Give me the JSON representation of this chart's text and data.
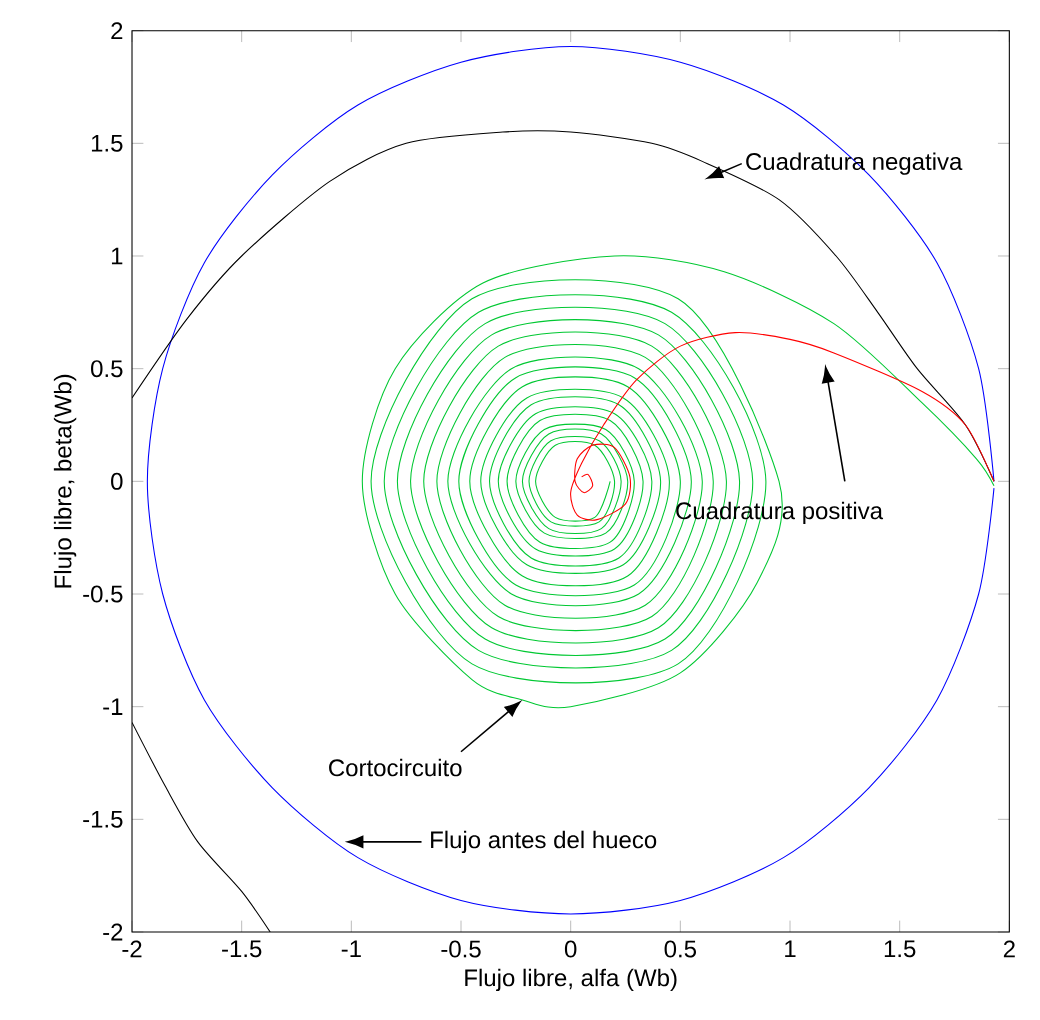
{
  "chart_data": {
    "type": "line",
    "xlabel": "Flujo libre, alfa (Wb)",
    "ylabel": "Flujo libre, beta(Wb)",
    "xlim": [
      -2,
      2
    ],
    "ylim": [
      -2,
      2
    ],
    "xticks": [
      -2,
      -1.5,
      -1,
      -0.5,
      0,
      0.5,
      1,
      1.5,
      2
    ],
    "yticks": [
      -2,
      -1.5,
      -1,
      -0.5,
      0,
      0.5,
      1,
      1.5,
      2
    ],
    "series": [
      {
        "color": "#0000ff",
        "x": [
          1.93,
          1.86,
          1.67,
          1.36,
          0.97,
          0.5,
          0,
          -0.5,
          -0.97,
          -1.36,
          -1.67,
          -1.86,
          -1.93,
          -1.86,
          -1.67,
          -1.36,
          -0.97,
          -0.5,
          0,
          0.5,
          0.97,
          1.36,
          1.67,
          1.86,
          1.93
        ],
        "values": [
          0,
          0.5,
          0.97,
          1.36,
          1.67,
          1.86,
          1.93,
          1.86,
          1.67,
          1.36,
          0.97,
          0.5,
          0,
          -0.5,
          -0.97,
          -1.36,
          -1.67,
          -1.86,
          -1.92,
          -1.86,
          -1.67,
          -1.36,
          -0.97,
          -0.5,
          -0.03
        ]
      },
      {
        "color": "#000000",
        "x": [
          1.93,
          1.8,
          1.58,
          1.4,
          1.21,
          0.95,
          0.6,
          0.37,
          0,
          -0.31,
          -0.75,
          -1.1,
          -1.5,
          -1.75,
          -2.0,
          null,
          -2.0,
          -1.85,
          -1.7,
          -1.5,
          -1.37
        ],
        "values": [
          0,
          0.25,
          0.5,
          0.75,
          1.0,
          1.25,
          1.42,
          1.5,
          1.55,
          1.55,
          1.5,
          1.33,
          1.0,
          0.72,
          0.37,
          null,
          -1.07,
          -1.35,
          -1.6,
          -1.82,
          -2.0
        ]
      },
      {
        "color": "#00c832",
        "x": [
          1.93,
          1.85,
          1.6,
          1.2,
          0.7,
          0.2,
          -0.4,
          -0.8,
          -0.95,
          -0.8,
          -0.45,
          -0.22,
          0,
          0.5,
          0.85,
          0.95,
          0.49,
          -0.45,
          -0.91,
          -0.45,
          0.49,
          0.89,
          0.46,
          -0.42,
          -0.85,
          -0.42,
          0.46,
          0.83,
          0.43,
          -0.39,
          -0.79,
          -0.39,
          0.43,
          0.77,
          0.4,
          -0.36,
          -0.73,
          -0.36,
          0.4,
          0.71,
          0.37,
          -0.33,
          -0.67,
          -0.33,
          0.37,
          0.65,
          0.34,
          -0.3,
          -0.61,
          -0.3,
          0.34,
          0.6,
          0.31,
          -0.27,
          -0.56,
          -0.27,
          0.31,
          0.55,
          0.29,
          -0.25,
          -0.51,
          -0.25,
          0.29,
          0.5,
          0.26,
          -0.22,
          -0.46,
          -0.22,
          0.26,
          0.45,
          0.24,
          -0.2,
          -0.41,
          -0.2,
          0.24,
          0.41,
          0.22,
          -0.18,
          -0.37,
          -0.18,
          0.22,
          0.37,
          0.2,
          -0.16,
          -0.33,
          -0.16,
          0.2,
          0.33,
          0.18,
          -0.14,
          -0.29,
          -0.14,
          0.18,
          0.29,
          0.16,
          -0.12,
          -0.25,
          -0.12,
          0.16,
          0.26,
          0.14,
          -0.1,
          -0.22,
          -0.1,
          0.14,
          0.23,
          0.13,
          -0.09,
          -0.19,
          -0.09,
          0.13,
          0.2,
          0.11,
          -0.07,
          -0.16,
          -0.07,
          0.11,
          0.18
        ],
        "values": [
          -0.02,
          0.1,
          0.35,
          0.7,
          0.93,
          1.0,
          0.88,
          0.5,
          0,
          -0.5,
          -0.88,
          -0.97,
          -1.0,
          -0.85,
          -0.45,
          0,
          0.81,
          0.81,
          0,
          -0.81,
          -0.81,
          0,
          0.75,
          0.75,
          0,
          -0.75,
          -0.75,
          0,
          0.7,
          0.7,
          0,
          -0.7,
          -0.7,
          0,
          0.65,
          0.65,
          0,
          -0.65,
          -0.65,
          0,
          0.6,
          0.6,
          0,
          -0.6,
          -0.6,
          0,
          0.55,
          0.55,
          0,
          -0.55,
          -0.55,
          0,
          0.5,
          0.5,
          0,
          -0.5,
          -0.5,
          0,
          0.46,
          0.46,
          0,
          -0.46,
          -0.46,
          0,
          0.42,
          0.42,
          0,
          -0.42,
          -0.42,
          0,
          0.37,
          0.37,
          0,
          -0.37,
          -0.37,
          0,
          0.34,
          0.34,
          0,
          -0.34,
          -0.34,
          0,
          0.3,
          0.3,
          0,
          -0.3,
          -0.3,
          0,
          0.27,
          0.27,
          0,
          -0.27,
          -0.27,
          0,
          0.23,
          0.23,
          0,
          -0.23,
          -0.23,
          0,
          0.21,
          0.21,
          0,
          -0.21,
          -0.21,
          0,
          0.18,
          0.18,
          0,
          -0.18,
          -0.18,
          0,
          0.16,
          0.16,
          0,
          -0.16,
          -0.16,
          0
        ]
      },
      {
        "color": "#ff0000",
        "x": [
          1.93,
          1.8,
          1.6,
          1.2,
          1.0,
          0.75,
          0.5,
          0.3,
          0.15,
          0.05,
          0.0,
          0.03,
          0.12,
          0.25,
          0.27,
          0.2,
          0.1,
          0.03,
          0.02,
          0.06,
          0.1,
          0.08,
          0.05
        ],
        "values": [
          0,
          0.25,
          0.4,
          0.57,
          0.63,
          0.66,
          0.6,
          0.45,
          0.25,
          0.08,
          -0.05,
          -0.15,
          -0.17,
          -0.1,
          0.02,
          0.15,
          0.16,
          0.1,
          0.0,
          -0.05,
          -0.02,
          0.03,
          0.02
        ]
      }
    ],
    "annotations": [
      "Cuadratura negativa",
      "Cuadratura positiva",
      {
        "text": "Cortocircuito",
        "x": -0.22,
        "y": -0.97
      },
      "Flujo antes del hueco"
    ]
  }
}
